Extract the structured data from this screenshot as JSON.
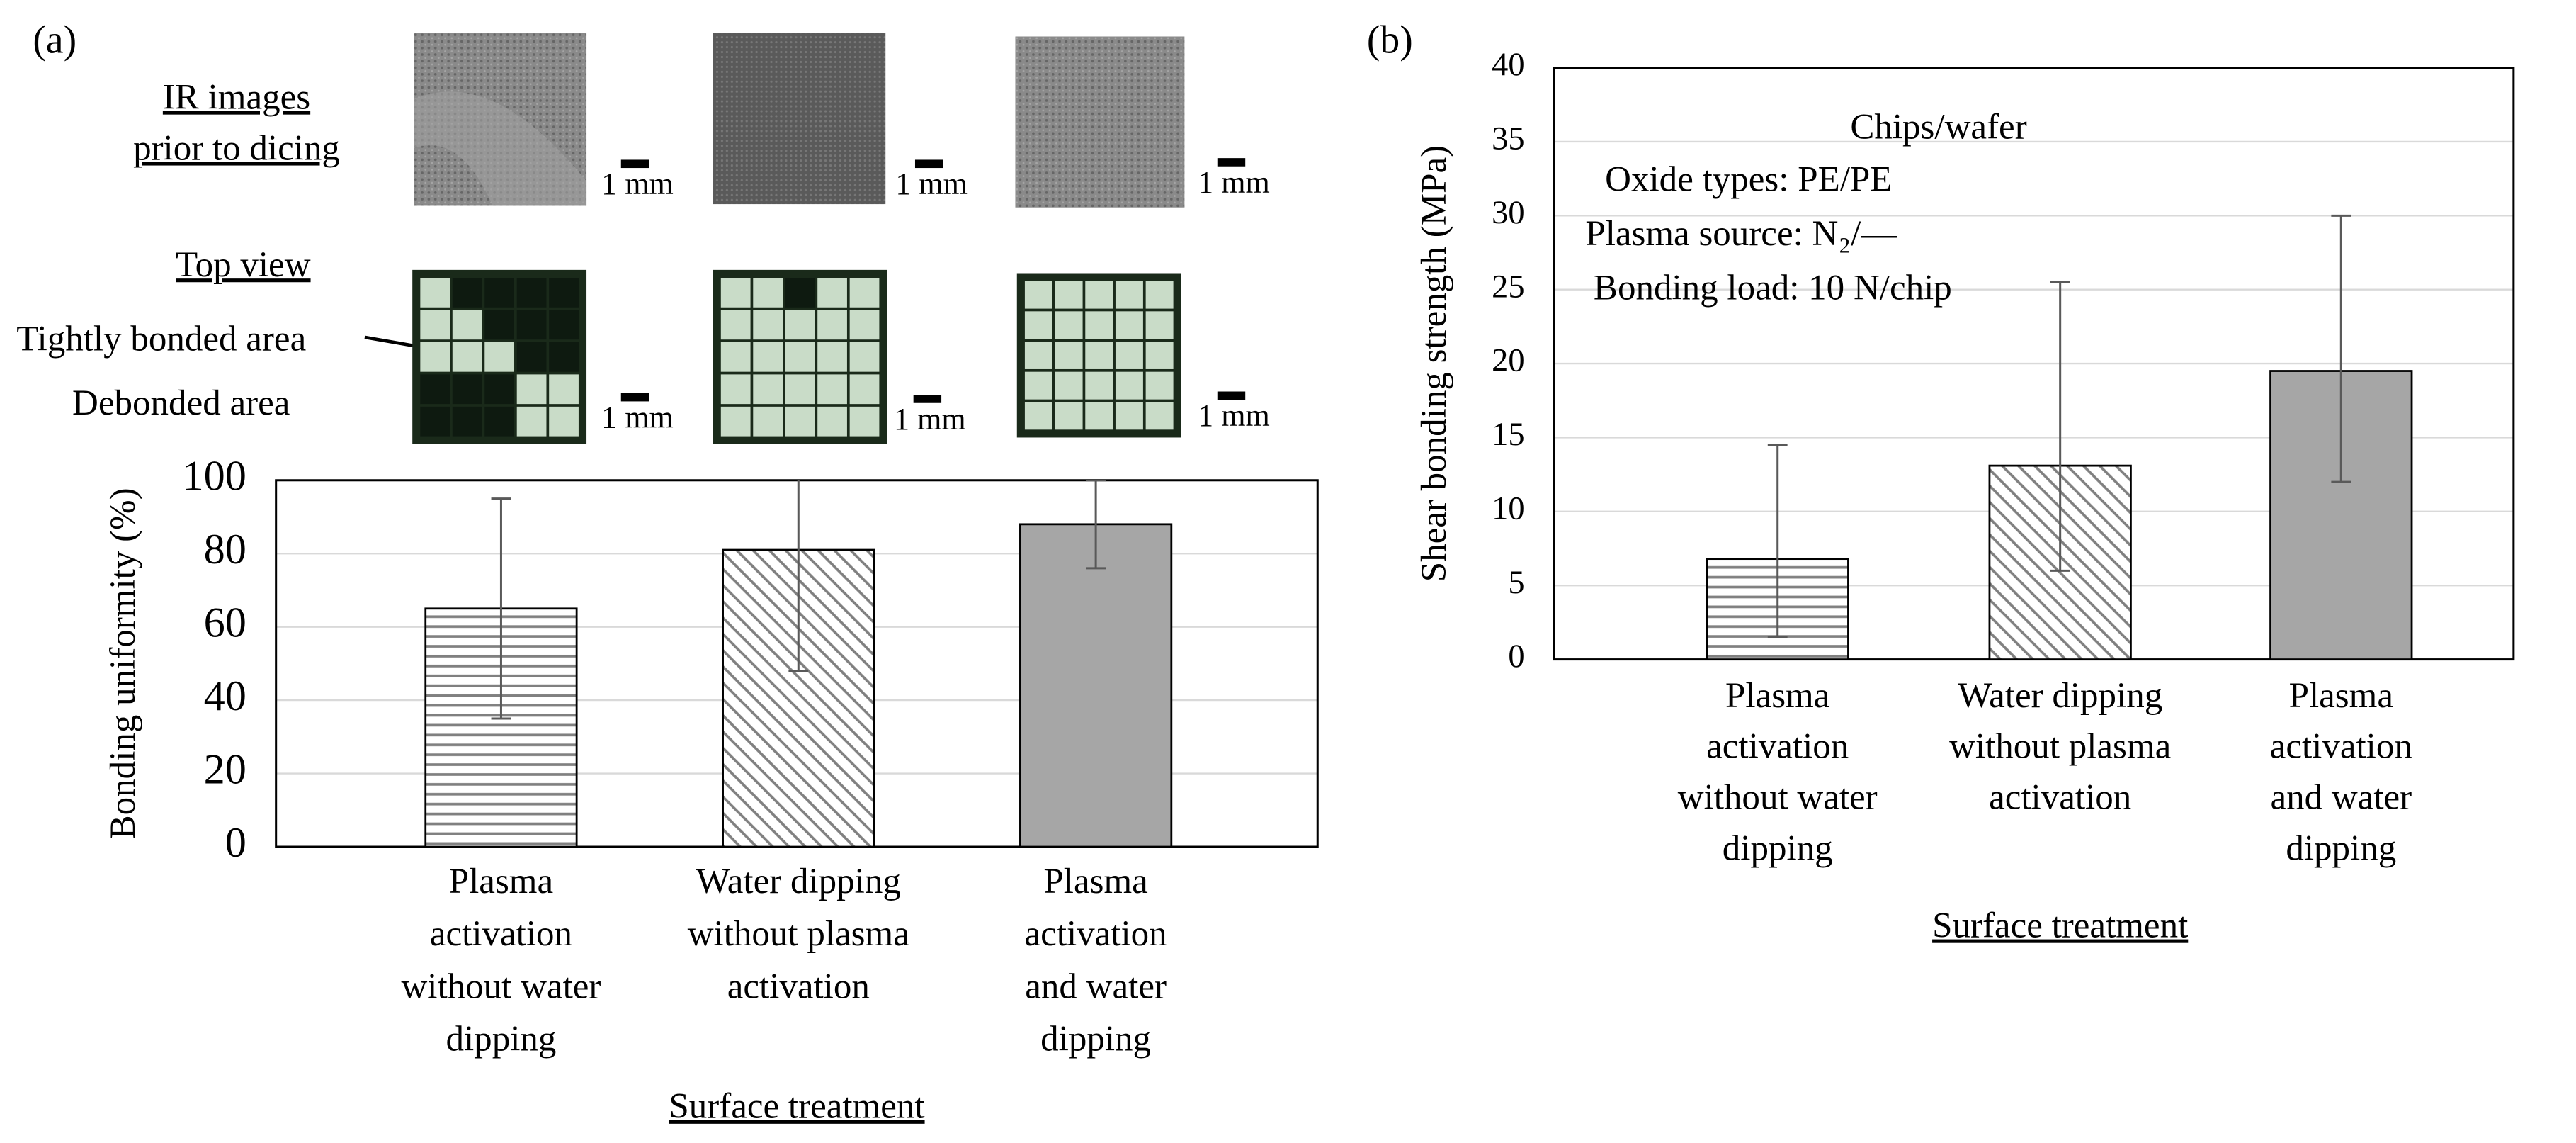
{
  "panel_labels": [
    "(a)",
    "(b)"
  ],
  "images": {
    "ir_label": [
      "IR images",
      "prior to dicing"
    ],
    "top_view_label": "Top view",
    "tight_label": "Tightly bonded area",
    "debond_label": "Debonded area",
    "scale_bar_label": "1 mm"
  },
  "chart_data": [
    {
      "type": "bar",
      "ylabel": "Bonding uniformity (%)",
      "xlabel": "Surface treatment",
      "categories": [
        [
          "Plasma",
          "activation",
          "without water",
          "dipping"
        ],
        [
          "Water dipping",
          "without plasma",
          "activation"
        ],
        [
          "Plasma",
          "activation",
          "and water",
          "dipping"
        ]
      ],
      "values": [
        65,
        81,
        88
      ],
      "errors": [
        30,
        33,
        12
      ],
      "hatches": [
        "horizontal",
        "diagonal",
        "solid"
      ],
      "colors": [
        "#7f7f7f",
        "#7f7f7f",
        "#a6a6a6"
      ],
      "ylim": [
        0,
        100
      ],
      "yticks": [
        0,
        20,
        40,
        60,
        80,
        100
      ],
      "grid": true
    },
    {
      "type": "bar",
      "ylabel": "Shear bonding strength (MPa)",
      "xlabel": "Surface treatment",
      "categories": [
        [
          "Plasma",
          "activation",
          "without water",
          "dipping"
        ],
        [
          "Water dipping",
          "without plasma",
          "activation"
        ],
        [
          "Plasma",
          "activation",
          "and water",
          "dipping"
        ]
      ],
      "values": [
        6.8,
        13.1,
        19.5
      ],
      "errors_plus": [
        7.7,
        12.4,
        10.5
      ],
      "errors_minus": [
        5.3,
        7.1,
        7.5
      ],
      "hatches": [
        "horizontal",
        "diagonal",
        "solid"
      ],
      "colors": [
        "#7f7f7f",
        "#7f7f7f",
        "#a6a6a6"
      ],
      "annotations": [
        "Chips/wafer",
        "Oxide types:    PE/PE",
        "Plasma source:   N₂/—",
        "Bonding load: 10 N/chip"
      ],
      "ylim": [
        0,
        40
      ],
      "yticks": [
        0,
        5,
        10,
        15,
        20,
        25,
        30,
        35,
        40
      ],
      "grid": true
    }
  ]
}
